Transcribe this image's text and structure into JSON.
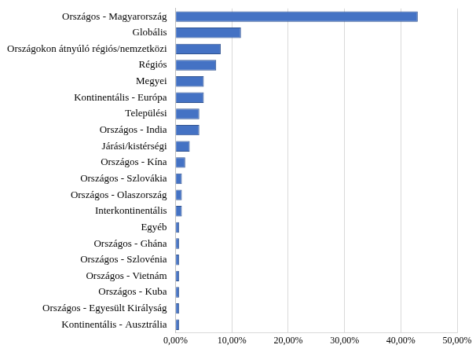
{
  "chart_data": {
    "type": "bar",
    "orientation": "horizontal",
    "categories": [
      "Országos - Magyarország",
      "Globális",
      "Országokon átnyúló régiós/nemzetközi",
      "Régiós",
      "Megyei",
      "Kontinentális - Európa",
      "Települési",
      "Országos - India",
      "Járási/kistérségi",
      "Országos - Kína",
      "Országos - Szlovákia",
      "Országos - Olaszország",
      "Interkontinentális",
      "Egyéb",
      "Országos - Ghána",
      "Országos - Szlovénia",
      "Országos - Vietnám",
      "Országos - Kuba",
      "Országos - Egyesült Királyság",
      "Kontinentális - Ausztrália"
    ],
    "values": [
      43.0,
      11.6,
      8.0,
      7.2,
      5.0,
      5.0,
      4.2,
      4.2,
      2.5,
      1.7,
      1.1,
      1.1,
      1.1,
      0.6,
      0.6,
      0.6,
      0.6,
      0.6,
      0.6,
      0.6
    ],
    "color": "#4472c4",
    "xlim": [
      0,
      50
    ],
    "xticks": [
      {
        "value": 0,
        "label": "0,00%"
      },
      {
        "value": 10,
        "label": "10,00%"
      },
      {
        "value": 20,
        "label": "20,00%"
      },
      {
        "value": 30,
        "label": "30,00%"
      },
      {
        "value": 40,
        "label": "40,00%"
      },
      {
        "value": 50,
        "label": "50,00%"
      }
    ],
    "grid": true
  }
}
